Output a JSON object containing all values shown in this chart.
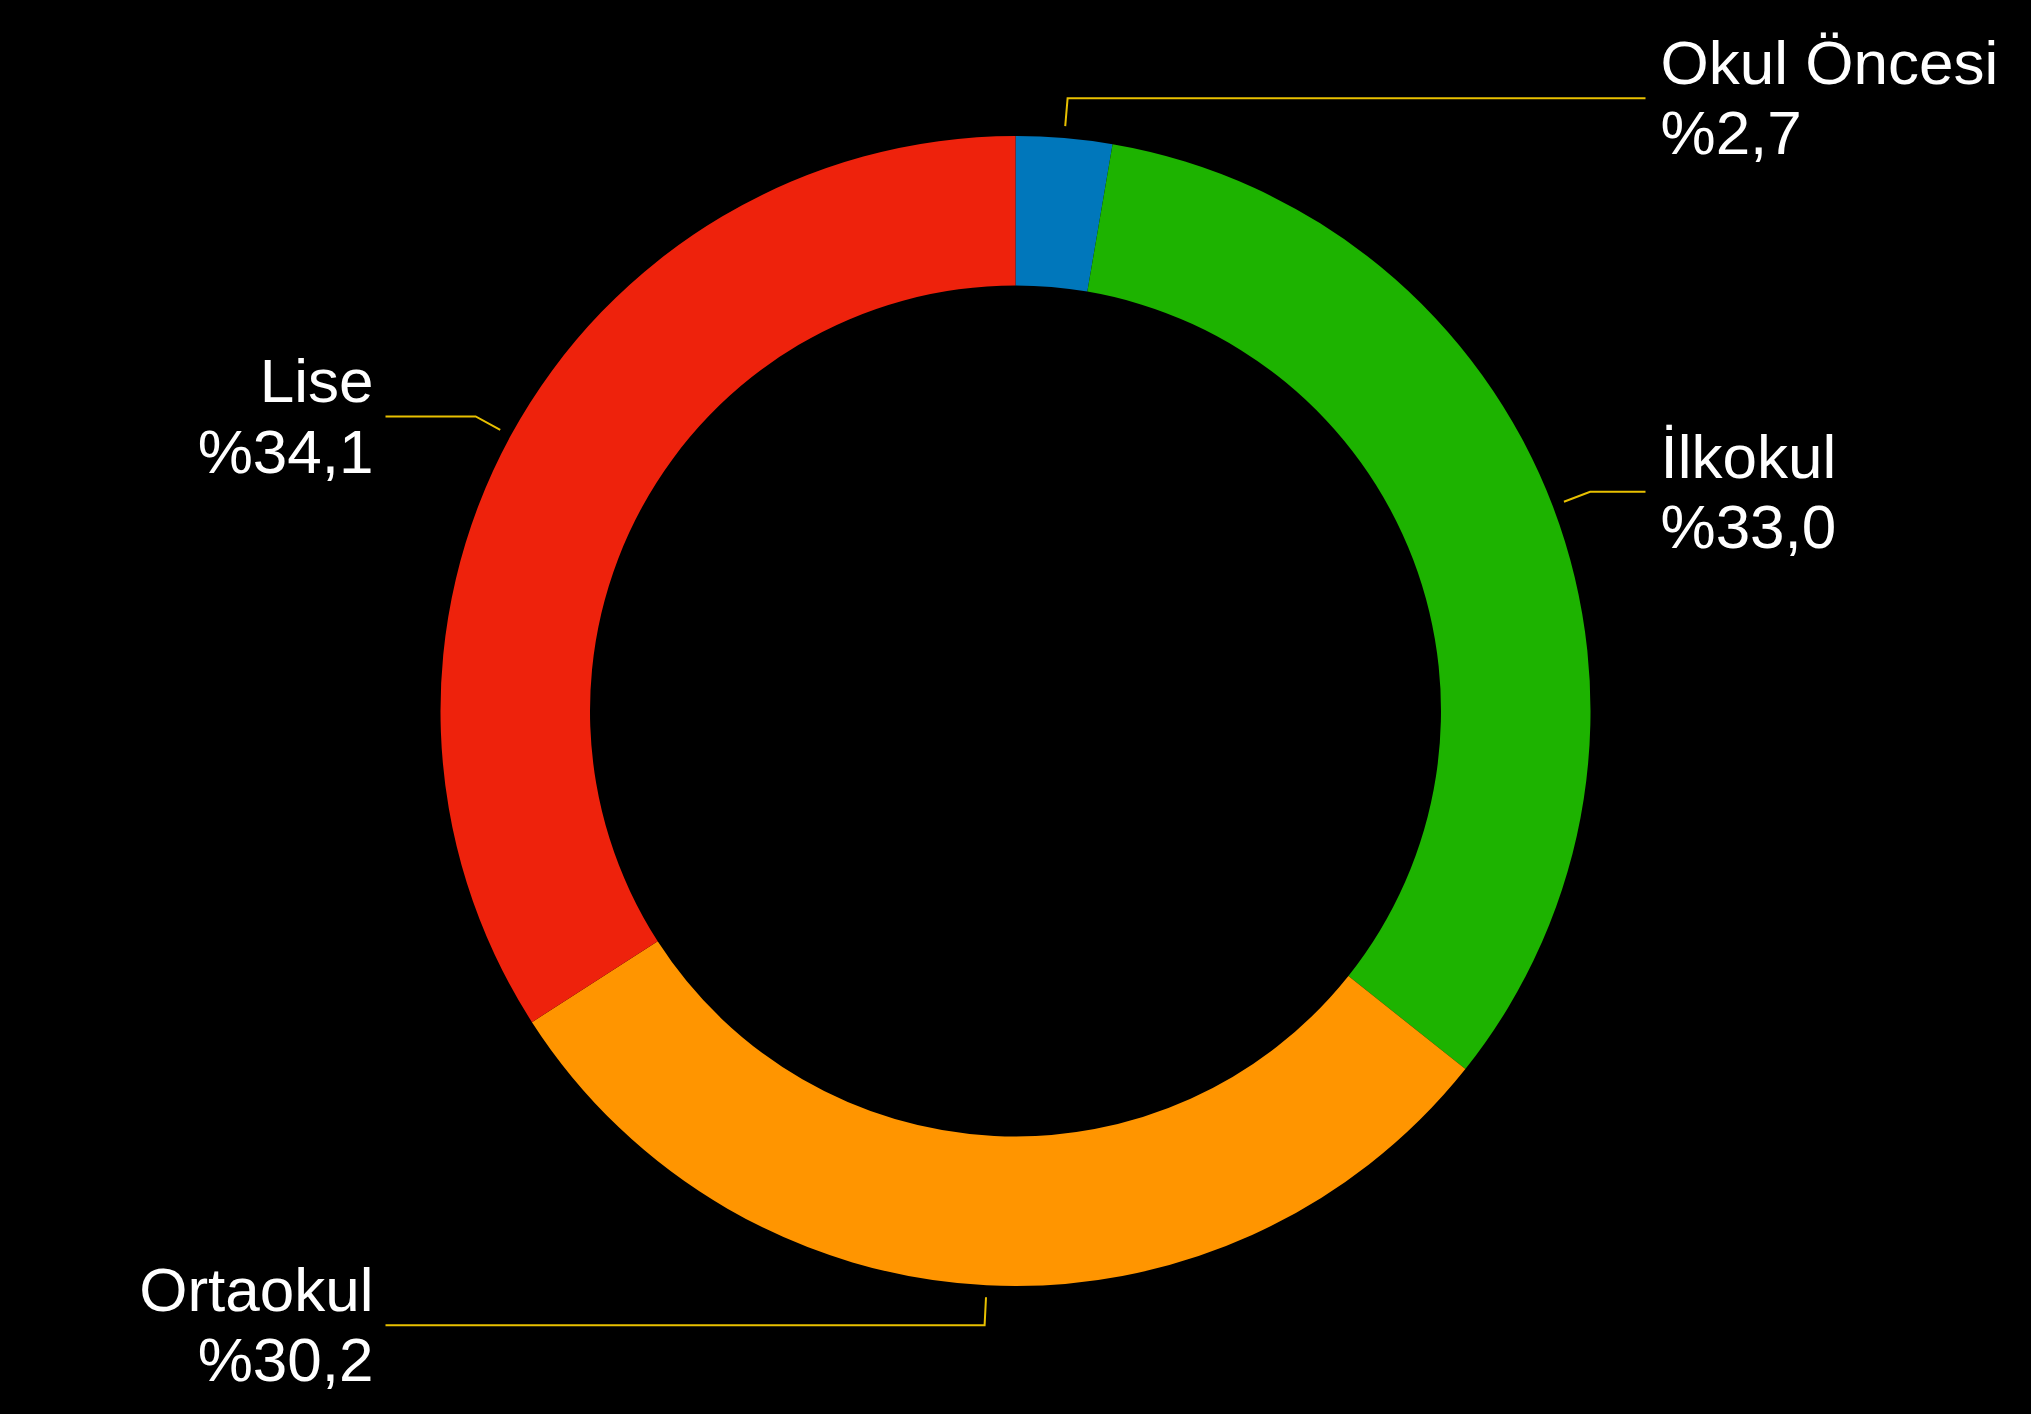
{
  "chart_data": {
    "type": "donut",
    "categories": [
      "Okul Öncesi",
      "İlkokul",
      "Ortaokul",
      "Lise"
    ],
    "values": [
      2.7,
      33.0,
      30.2,
      34.1
    ],
    "colors": [
      "#0077bb",
      "#1db300",
      "#ff9500",
      "#ee220c"
    ],
    "value_labels": [
      "%2,7",
      "%33,0",
      "%30,2",
      "%34,1"
    ]
  }
}
